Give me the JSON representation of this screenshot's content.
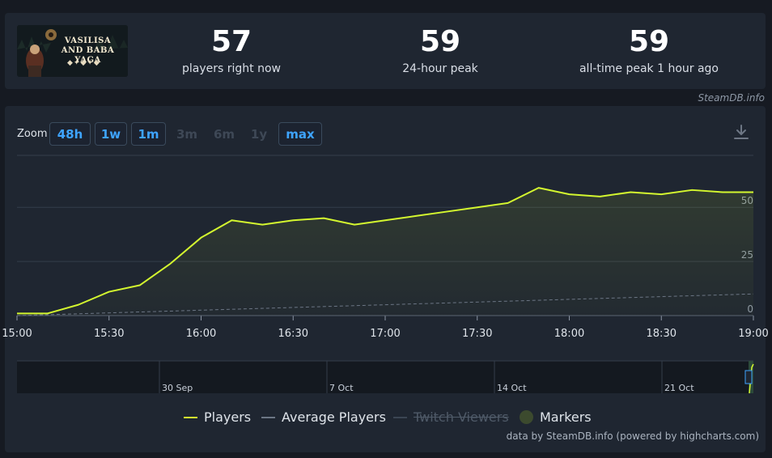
{
  "header": {
    "game_logo_text_line1": "VASILISA",
    "game_logo_text_line2": "AND BABA YAGA",
    "stats": [
      {
        "value": "57",
        "label": "players right now"
      },
      {
        "value": "59",
        "label": "24-hour peak"
      },
      {
        "value": "59",
        "label": "all-time peak 1 hour ago"
      }
    ]
  },
  "watermark": "SteamDB.info",
  "zoom": {
    "label": "Zoom",
    "buttons": [
      {
        "label": "48h",
        "state": "active"
      },
      {
        "label": "1w",
        "state": "active"
      },
      {
        "label": "1m",
        "state": "active"
      },
      {
        "label": "3m",
        "state": "disabled"
      },
      {
        "label": "6m",
        "state": "disabled"
      },
      {
        "label": "1y",
        "state": "disabled"
      },
      {
        "label": "max",
        "state": "active"
      }
    ]
  },
  "colors": {
    "players": "#d4f72f",
    "average": "#6c7685",
    "twitch": "#3b4553",
    "markers": "#3c4a2e",
    "grid": "#343d4a",
    "navigator_dark": "#141920"
  },
  "chart_data": {
    "type": "line",
    "x_ticks": [
      "15:00",
      "15:30",
      "16:00",
      "16:30",
      "17:00",
      "17:30",
      "18:00",
      "18:30",
      "19:00"
    ],
    "y_ticks": [
      "0",
      "25",
      "50"
    ],
    "ylim": [
      0,
      74
    ],
    "xlim": [
      "15:00",
      "19:00"
    ],
    "series": [
      {
        "name": "Players",
        "x": [
          "15:00",
          "15:10",
          "15:20",
          "15:30",
          "15:40",
          "15:50",
          "16:00",
          "16:10",
          "16:20",
          "16:30",
          "16:40",
          "16:50",
          "17:00",
          "17:10",
          "17:20",
          "17:30",
          "17:40",
          "17:50",
          "18:00",
          "18:10",
          "18:20",
          "18:30",
          "18:40",
          "18:50",
          "19:00"
        ],
        "values": [
          1,
          1,
          5,
          11,
          14,
          24,
          36,
          44,
          42,
          44,
          45,
          42,
          44,
          46,
          48,
          50,
          52,
          59,
          56,
          55,
          57,
          56,
          58,
          57,
          57
        ]
      },
      {
        "name": "Average Players",
        "x": [
          "15:00",
          "19:00"
        ],
        "values": [
          0,
          10
        ]
      }
    ],
    "legend": [
      {
        "name": "Players",
        "enabled": true
      },
      {
        "name": "Average Players",
        "enabled": true
      },
      {
        "name": "Twitch Viewers",
        "enabled": false
      },
      {
        "name": "Markers",
        "enabled": true
      }
    ],
    "legend_position": "bottom-center",
    "grid": true,
    "navigator_labels": [
      "30 Sep",
      "7 Oct",
      "14 Oct",
      "21 Oct"
    ]
  },
  "credits": "data by SteamDB.info (powered by highcharts.com)"
}
